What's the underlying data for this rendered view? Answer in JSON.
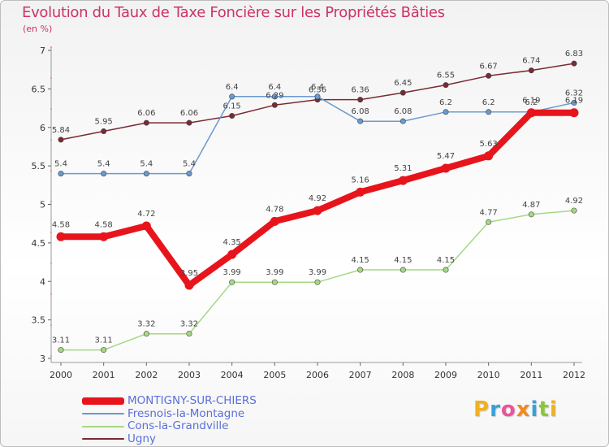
{
  "header": {
    "title": "Evolution du Taux de Taxe Foncière sur les Propriétés Bâties",
    "subtitle": "(en %)"
  },
  "brand": {
    "letters": [
      "P",
      "r",
      "o",
      "x",
      "i",
      "t",
      "i"
    ],
    "colors": [
      "#f0b020",
      "#3aa0d8",
      "#e9559a",
      "#f08a20",
      "#3aa0d8",
      "#8cc63f",
      "#f0b020"
    ]
  },
  "chart_data": {
    "type": "line",
    "title": "Evolution du Taux de Taxe Foncière sur les Propriétés Bâties",
    "ylabel": "(en %)",
    "xlabel": "",
    "x": [
      "2000",
      "2001",
      "2002",
      "2003",
      "2004",
      "2005",
      "2006",
      "2007",
      "2008",
      "2009",
      "2010",
      "2011",
      "2012"
    ],
    "ylim": [
      3,
      7
    ],
    "yticks": [
      "3",
      "3.5",
      "4",
      "4.5",
      "5",
      "5.5",
      "6",
      "6.5",
      "7"
    ],
    "grid": false,
    "legend_position": "bottom-left",
    "series": [
      {
        "name": "Ugny",
        "color": "#7a2a32",
        "emphasis": false,
        "values": [
          5.84,
          5.95,
          6.06,
          6.06,
          6.15,
          6.29,
          6.36,
          6.36,
          6.45,
          6.55,
          6.67,
          6.74,
          6.83
        ],
        "labels": [
          "5.84",
          "5.95",
          "6.06",
          "6.06",
          "6.15",
          "6.29",
          "6.36",
          "6.36",
          "6.45",
          "6.55",
          "6.67",
          "6.74",
          "6.83"
        ]
      },
      {
        "name": "Fresnois-la-Montagne",
        "color": "#6a9ad0",
        "emphasis": false,
        "values": [
          5.4,
          5.4,
          5.4,
          5.4,
          6.4,
          6.4,
          6.4,
          6.08,
          6.08,
          6.2,
          6.2,
          6.2,
          6.32
        ],
        "labels": [
          "5.4",
          "5.4",
          "5.4",
          "5.4",
          "6.4",
          "6.4",
          "6.4",
          "6.08",
          "6.08",
          "6.2",
          "6.2",
          "6.2",
          "6.32"
        ]
      },
      {
        "name": "Cons-la-Grandville",
        "color": "#a6d883",
        "emphasis": false,
        "values": [
          3.11,
          3.11,
          3.32,
          3.32,
          3.99,
          3.99,
          3.99,
          4.15,
          4.15,
          4.15,
          4.77,
          4.87,
          4.92
        ],
        "labels": [
          "3.11",
          "3.11",
          "3.32",
          "3.32",
          "3.99",
          "3.99",
          "3.99",
          "4.15",
          "4.15",
          "4.15",
          "4.77",
          "4.87",
          "4.92"
        ]
      },
      {
        "name": "MONTIGNY-SUR-CHIERS",
        "color": "#e8141c",
        "emphasis": true,
        "values": [
          4.58,
          4.58,
          4.72,
          3.95,
          4.35,
          4.78,
          4.92,
          5.16,
          5.31,
          5.47,
          5.63,
          6.19,
          6.19
        ],
        "labels": [
          "4.58",
          "4.58",
          "4.72",
          "3.95",
          "4.35",
          "4.78",
          "4.92",
          "5.16",
          "5.31",
          "5.47",
          "5.63",
          "6.19",
          "6.19"
        ]
      }
    ],
    "legend": [
      "MONTIGNY-SUR-CHIERS",
      "Fresnois-la-Montagne",
      "Cons-la-Grandville",
      "Ugny"
    ]
  }
}
